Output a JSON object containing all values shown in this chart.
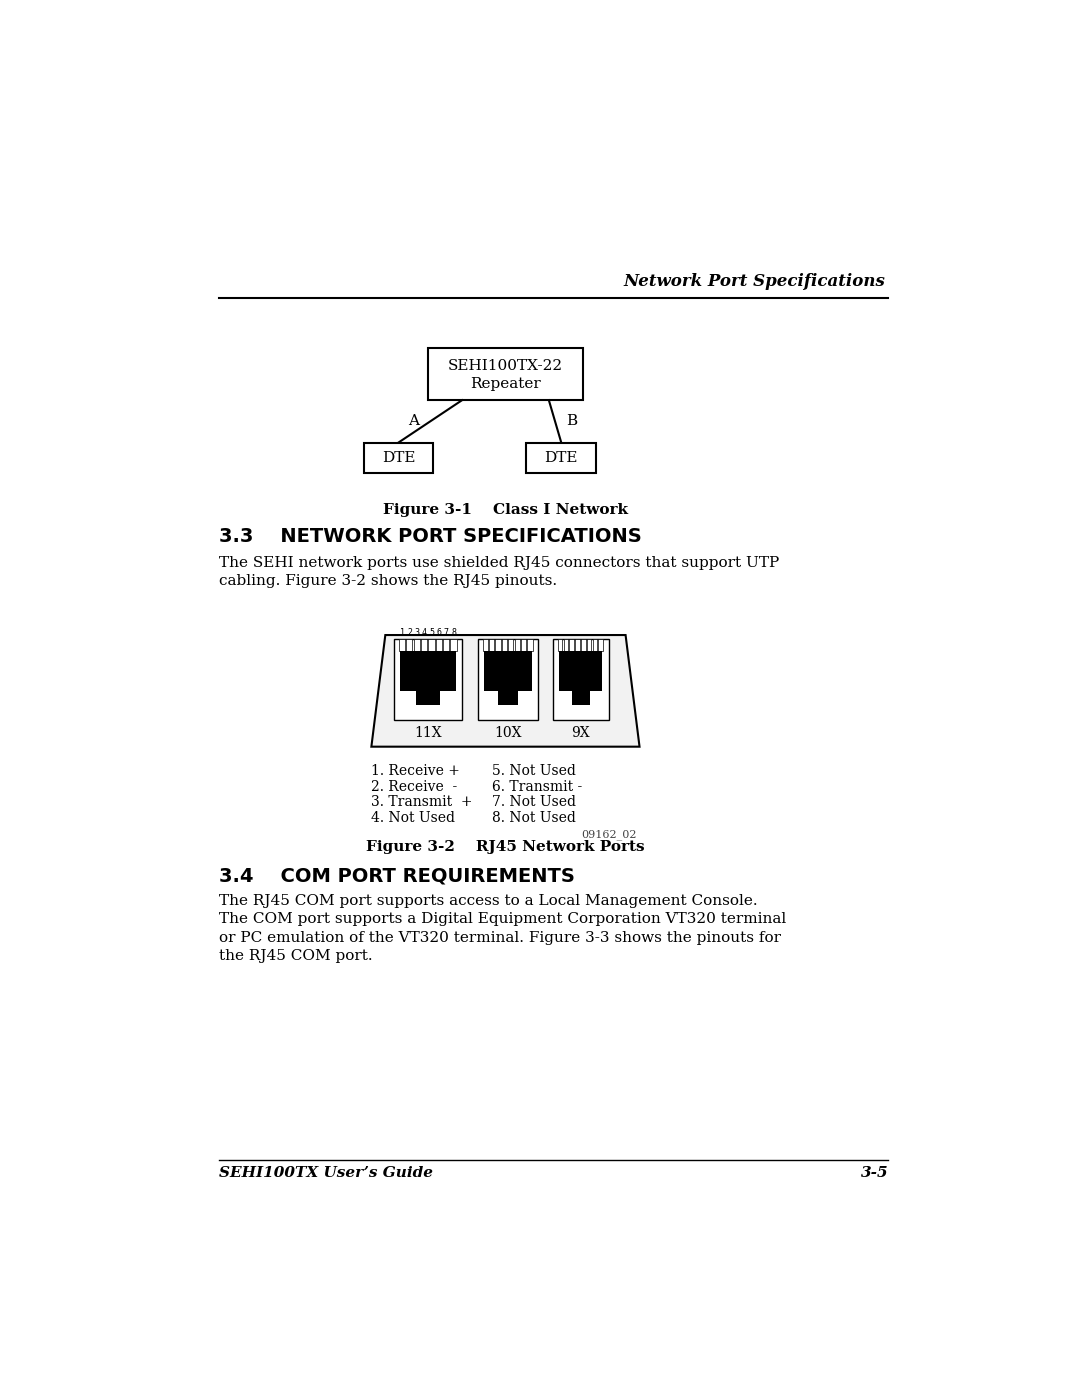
{
  "bg_color": "#ffffff",
  "header_line_text": "Network Port Specifications",
  "section_33_title": "3.3    NETWORK PORT SPECIFICATIONS",
  "section_33_body1": "The SEHI network ports use shielded RJ45 connectors that support UTP",
  "section_33_body2": "cabling. Figure 3-2 shows the RJ45 pinouts.",
  "section_34_title": "3.4    COM PORT REQUIREMENTS",
  "section_34_body1": "The RJ45 COM port supports access to a Local Management Console.",
  "section_34_body2": "The COM port supports a Digital Equipment Corporation VT320 terminal",
  "section_34_body3": "or PC emulation of the VT320 terminal. Figure 3-3 shows the pinouts for",
  "section_34_body4": "the RJ45 COM port.",
  "fig1_caption": "Figure 3-1    Class I Network",
  "fig2_caption": "Figure 3-2    RJ45 Network Ports",
  "repeater_line1": "SEHI100TX-22",
  "repeater_line2": "Repeater",
  "dte_label": "DTE",
  "port_labels": [
    "11X",
    "10X",
    "9X"
  ],
  "pin_col1": [
    "1. Receive +",
    "2. Receive  -",
    "3. Transmit  +",
    "4. Not Used"
  ],
  "pin_col2": [
    "5. Not Used",
    "6. Transmit -",
    "7. Not Used",
    "8. Not Used"
  ],
  "image_id": "09162_02",
  "footer_left": "SEHI100TX User’s Guide",
  "footer_right": "3-5"
}
